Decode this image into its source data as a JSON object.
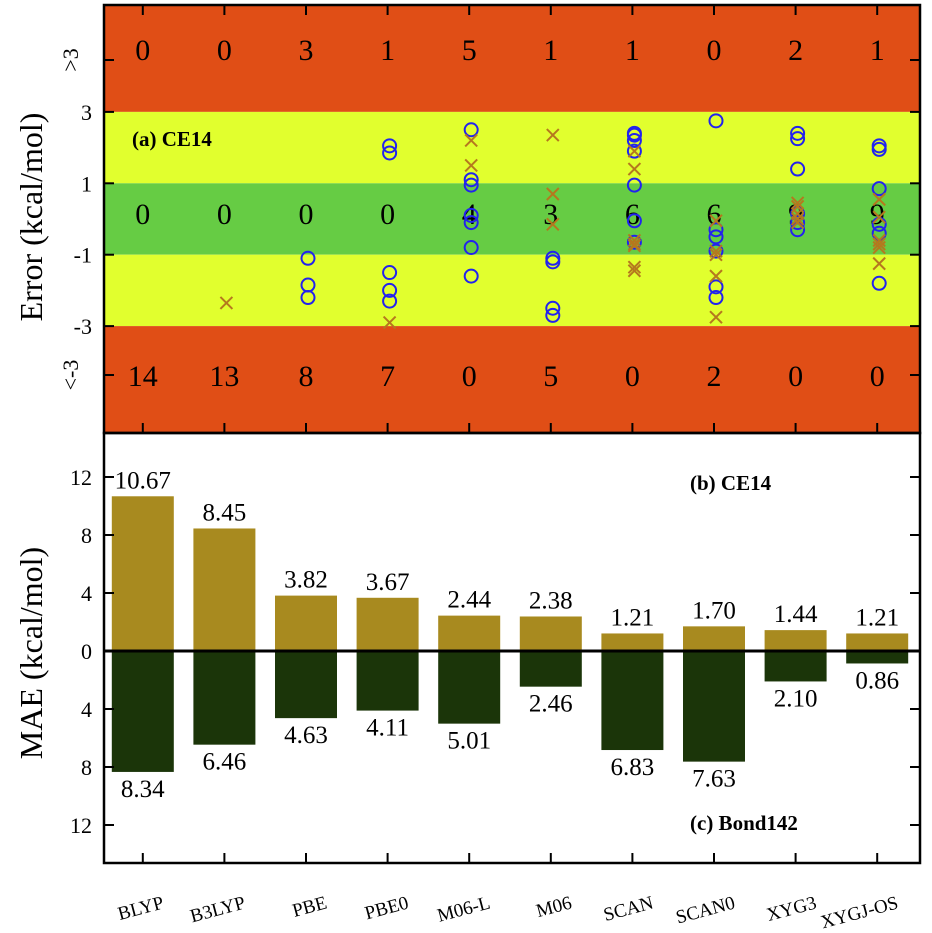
{
  "methods": [
    "BLYP",
    "B3LYP",
    "PBE",
    "PBE0",
    "M06-L",
    "M06",
    "SCAN",
    "SCAN0",
    "XYG3",
    "XYGJ-OS"
  ],
  "panel_a": {
    "label": "(a) CE14",
    "ylabel": "Error (kcal/mol)",
    "ytick_labels": [
      ">3",
      "3",
      "1",
      "-1",
      "-3",
      "<-3"
    ],
    "colors": {
      "outer": "#e04e16",
      "middle": "#e1ff2e",
      "inner": "#66cc44",
      "circle": "#2222ee",
      "cross": "#b5781e"
    },
    "counts_above": [
      "0",
      "0",
      "3",
      "1",
      "5",
      "1",
      "1",
      "0",
      "2",
      "1"
    ],
    "counts_within": [
      "0",
      "0",
      "0",
      "0",
      "4",
      "3",
      "6",
      "6",
      "9",
      "9"
    ],
    "counts_below": [
      "14",
      "13",
      "8",
      "7",
      "0",
      "5",
      "0",
      "2",
      "0",
      "0"
    ]
  },
  "panel_bc": {
    "ylabel": "MAE (kcal/mol)",
    "ytick_labels": [
      "12",
      "8",
      "4",
      "0",
      "4",
      "8",
      "12"
    ],
    "label_b": "(b) CE14",
    "label_c": "(c) Bond142",
    "colors": {
      "top": "#a88a1f",
      "bottom": "#1b3509"
    },
    "value_labels_b": [
      "10.67",
      "8.45",
      "3.82",
      "3.67",
      "2.44",
      "2.38",
      "1.21",
      "1.70",
      "1.44",
      "1.21"
    ],
    "value_labels_c": [
      "8.34",
      "6.46",
      "4.63",
      "4.11",
      "5.01",
      "2.46",
      "6.83",
      "7.63",
      "2.10",
      "0.86"
    ]
  },
  "chart_data": [
    {
      "type": "scatter",
      "title": "(a) CE14",
      "ylabel": "Error (kcal/mol)",
      "categories": [
        "BLYP",
        "B3LYP",
        "PBE",
        "PBE0",
        "M06-L",
        "M06",
        "SCAN",
        "SCAN0",
        "XYG3",
        "XYGJ-OS"
      ],
      "ylim": [
        -5,
        5
      ],
      "y_ticks": [
        ">3",
        "3",
        "1",
        "-1",
        "-3",
        "<-3"
      ],
      "bands": {
        "outer": "|error| > 3",
        "middle": "1 < |error| <= 3",
        "inner": "|error| <= 1"
      },
      "series": [
        {
          "marker": "circle",
          "values": [
            [],
            [],
            [
              -1.1,
              -1.85,
              -2.2
            ],
            [
              2.05,
              1.85,
              -1.5,
              -2.0,
              -2.3
            ],
            [
              2.5,
              1.1,
              0.95,
              0.1,
              -0.1,
              -0.8,
              -1.6
            ],
            [
              -1.1,
              -1.2,
              -2.5,
              -2.7
            ],
            [
              2.4,
              2.35,
              2.2,
              1.9,
              0.95,
              -0.05,
              -0.65
            ],
            [
              2.75,
              -0.3,
              -0.5,
              -0.9,
              -1.9,
              -2.2
            ],
            [
              2.4,
              2.25,
              1.4,
              0.15,
              -0.1,
              -0.3
            ],
            [
              2.05,
              1.95,
              0.85,
              -0.15,
              -0.4,
              -1.8
            ]
          ]
        },
        {
          "marker": "cross",
          "values": [
            [],
            [
              -2.35
            ],
            [],
            [
              -2.9
            ],
            [
              2.2,
              1.5
            ],
            [
              2.35,
              0.7,
              -0.15
            ],
            [
              1.9,
              1.4,
              -0.6,
              -0.7,
              -0.75,
              -1.35,
              -1.45
            ],
            [
              -0.05,
              -0.9,
              -1.0,
              -1.6,
              -2.75
            ],
            [
              0.45,
              0.35,
              0.15,
              0.0,
              -0.1
            ],
            [
              0.55,
              0.05,
              -0.6,
              -0.7,
              -0.8,
              -1.25
            ]
          ]
        }
      ]
    },
    {
      "type": "bar",
      "title": "(b) CE14",
      "ylabel": "MAE (kcal/mol)",
      "categories": [
        "BLYP",
        "B3LYP",
        "PBE",
        "PBE0",
        "M06-L",
        "M06",
        "SCAN",
        "SCAN0",
        "XYG3",
        "XYGJ-OS"
      ],
      "values": [
        10.67,
        8.45,
        3.82,
        3.67,
        2.44,
        2.38,
        1.21,
        1.7,
        1.44,
        1.21
      ],
      "ylim": [
        0,
        15
      ]
    },
    {
      "type": "bar",
      "title": "(c) Bond142",
      "ylabel": "MAE (kcal/mol)",
      "categories": [
        "BLYP",
        "B3LYP",
        "PBE",
        "PBE0",
        "M06-L",
        "M06",
        "SCAN",
        "SCAN0",
        "XYG3",
        "XYGJ-OS"
      ],
      "values": [
        8.34,
        6.46,
        4.63,
        4.11,
        5.01,
        2.46,
        6.83,
        7.63,
        2.1,
        0.86
      ],
      "ylim": [
        0,
        15
      ],
      "orientation": "downward"
    }
  ]
}
